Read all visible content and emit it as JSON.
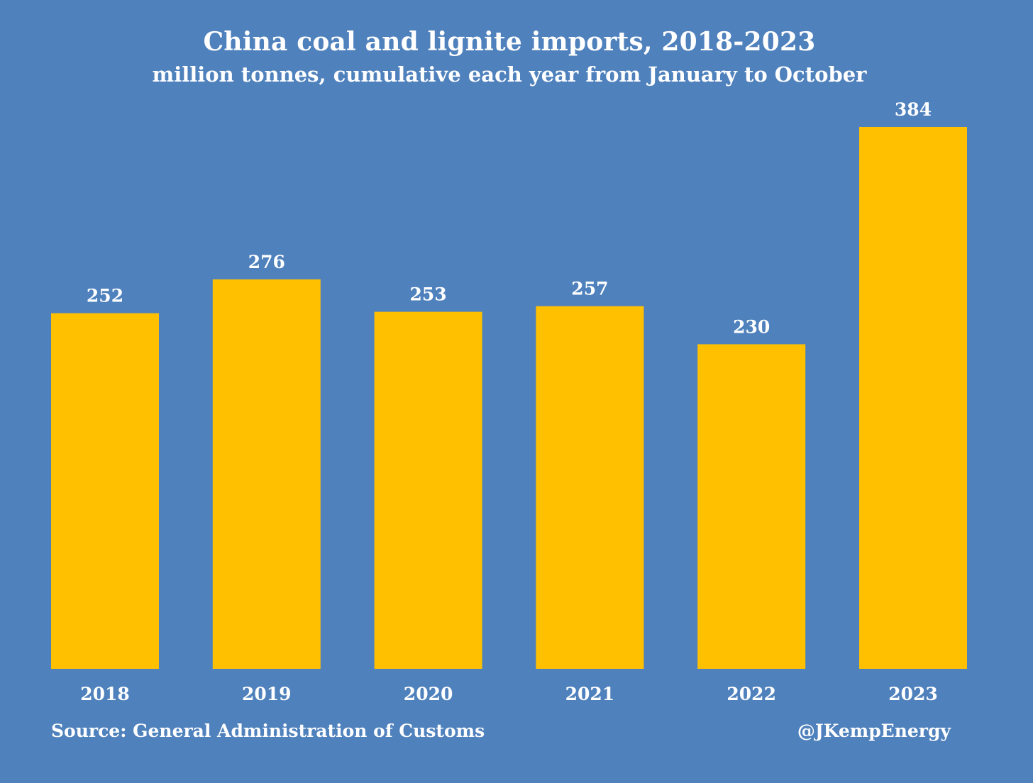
{
  "chart_data": {
    "type": "bar",
    "title": "China coal and lignite imports, 2018-2023",
    "subtitle": "million tonnes, cumulative each year from January to October",
    "categories": [
      "2018",
      "2019",
      "2020",
      "2021",
      "2022",
      "2023"
    ],
    "values": [
      252,
      276,
      253,
      257,
      230,
      384
    ],
    "data_labels": [
      "252",
      "276",
      "253",
      "257",
      "230",
      "384"
    ],
    "ylim": [
      0,
      384
    ],
    "grid": false,
    "legend": "none",
    "bar_color": "#FFC000",
    "background_color": "#4F81BD",
    "text_color": "#FFFFFF"
  },
  "footer": {
    "source": "Source: General Administration of Customs",
    "credit": "@JKempEnergy"
  }
}
